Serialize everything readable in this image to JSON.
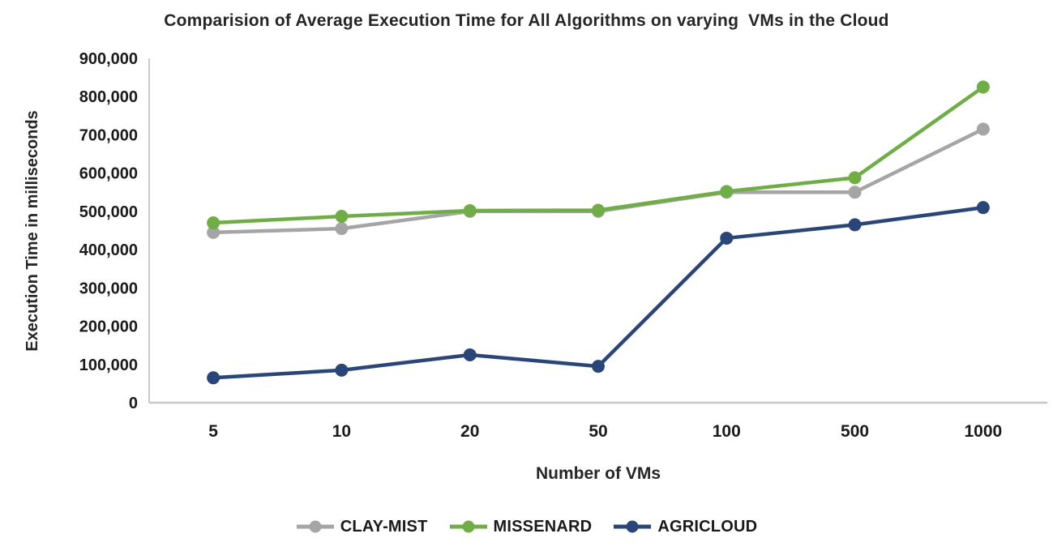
{
  "chart_data": {
    "type": "line",
    "title": "Comparision of Average Execution Time for All Algorithms on varying  VMs in the Cloud",
    "xlabel": "Number of VMs",
    "ylabel": "Execution Time in milliseconds",
    "categories": [
      "5",
      "10",
      "20",
      "50",
      "100",
      "500",
      "1000"
    ],
    "series": [
      {
        "name": "CLAY-MIST",
        "color": "#A5A5A5",
        "values": [
          445000,
          455000,
          500000,
          500000,
          550000,
          550000,
          715000
        ]
      },
      {
        "name": "MISSENARD",
        "color": "#70AD47",
        "values": [
          470000,
          487000,
          502000,
          503000,
          552000,
          588000,
          825000
        ]
      },
      {
        "name": "AGRICLOUD",
        "color": "#2A4678",
        "values": [
          65000,
          85000,
          125000,
          95000,
          430000,
          465000,
          510000
        ]
      }
    ],
    "ylim": [
      0,
      900000
    ],
    "y_tick_step": 100000,
    "y_tick_labels": [
      "0",
      "100,000",
      "200,000",
      "300,000",
      "400,000",
      "500,000",
      "600,000",
      "700,000",
      "800,000",
      "900,000"
    ],
    "grid": false,
    "legend_position": "bottom",
    "axis_color": "#C8C8C8",
    "text_color": "#1a1a1a"
  }
}
